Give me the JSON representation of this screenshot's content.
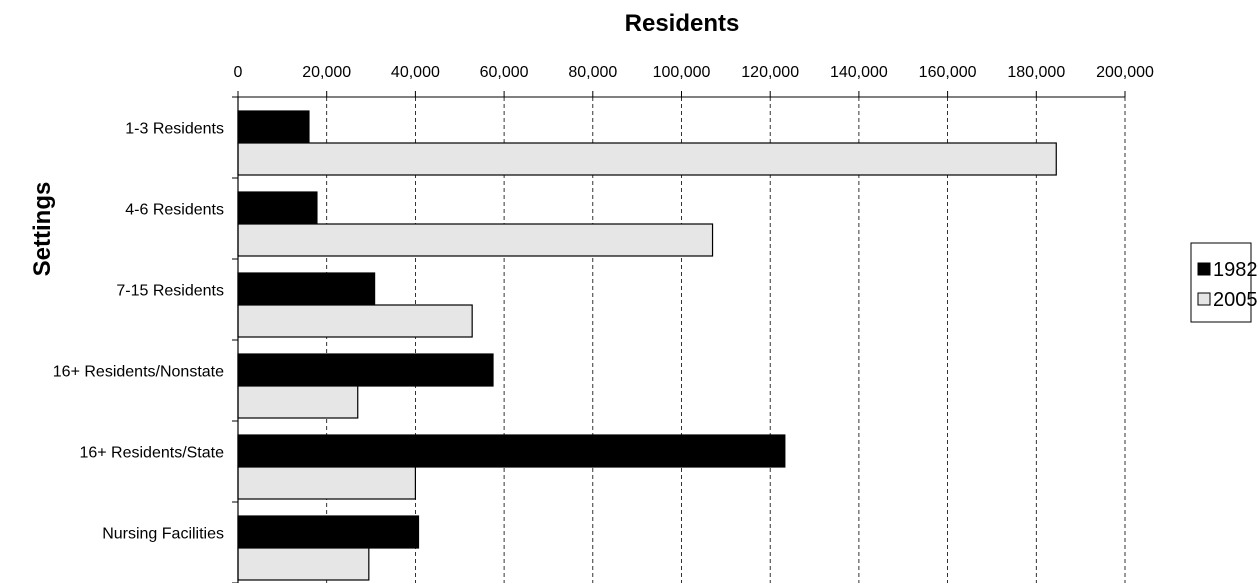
{
  "chart_data": {
    "type": "bar",
    "orientation": "horizontal",
    "title": "",
    "xlabel": "Residents",
    "ylabel": "Settings",
    "xlim": [
      0,
      200000
    ],
    "xticks": [
      0,
      20000,
      40000,
      60000,
      80000,
      100000,
      120000,
      140000,
      160000,
      180000,
      200000
    ],
    "xtick_labels": [
      "0",
      "20,000",
      "40,000",
      "60,000",
      "80,000",
      "100,000",
      "120,000",
      "140,000",
      "160,000",
      "180,000",
      "200,000"
    ],
    "x_axis_position": "top",
    "grid": "vertical-dashed",
    "categories": [
      "1-3 Residents",
      "4-6 Residents",
      "7-15 Residents",
      "16+ Residents/Nonstate",
      "16+ Residents/State",
      "Nursing Facilities"
    ],
    "series": [
      {
        "name": "1982",
        "color": "#000000",
        "values": [
          16000,
          17800,
          30800,
          57500,
          123300,
          40700
        ]
      },
      {
        "name": "2005",
        "color": "#e6e6e6",
        "values": [
          184500,
          107000,
          52800,
          27000,
          40000,
          29500
        ]
      }
    ],
    "legend": "right"
  }
}
